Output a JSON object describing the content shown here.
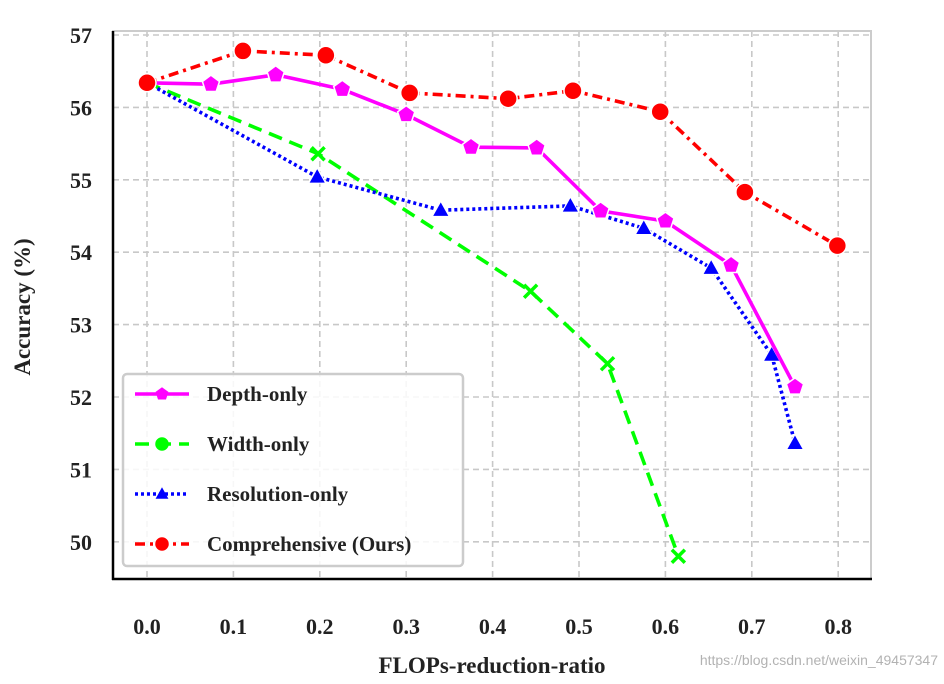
{
  "chart_data": {
    "type": "line",
    "title": "",
    "xlabel": "FLOPs-reduction-ratio",
    "ylabel": "Accuracy (%)",
    "xlim": [
      -0.04,
      0.84
    ],
    "ylim": [
      49.5,
      57.05
    ],
    "xticks": [
      "0.0",
      "0.1",
      "0.2",
      "0.3",
      "0.4",
      "0.5",
      "0.6",
      "0.7",
      "0.8"
    ],
    "xtick_values": [
      0.0,
      0.1,
      0.2,
      0.3,
      0.4,
      0.5,
      0.6,
      0.7,
      0.8
    ],
    "yticks": [
      "50",
      "51",
      "52",
      "53",
      "54",
      "55",
      "56",
      "57"
    ],
    "ytick_values": [
      50,
      51,
      52,
      53,
      54,
      55,
      56,
      57
    ],
    "grid": true,
    "legend_position": "lower-left",
    "series": [
      {
        "name": "Depth-only",
        "color": "#ff00ff",
        "line_style": "solid",
        "marker": "pentagon",
        "x": [
          0.0,
          0.074,
          0.149,
          0.226,
          0.3,
          0.375,
          0.451,
          0.525,
          0.6,
          0.676,
          0.75
        ],
        "y": [
          56.34,
          56.32,
          56.45,
          56.25,
          55.9,
          55.45,
          55.44,
          54.57,
          54.43,
          53.82,
          52.14
        ]
      },
      {
        "name": "Width-only",
        "color": "#00ff00",
        "line_style": "dashed",
        "marker": "x",
        "x": [
          0.0,
          0.198,
          0.444,
          0.533,
          0.615
        ],
        "y": [
          56.34,
          55.36,
          53.46,
          52.46,
          49.8
        ]
      },
      {
        "name": "Resolution-only",
        "color": "#0000ff",
        "line_style": "dotted",
        "marker": "triangle",
        "x": [
          0.0,
          0.197,
          0.34,
          0.49,
          0.575,
          0.653,
          0.723,
          0.75
        ],
        "y": [
          56.34,
          55.04,
          54.58,
          54.64,
          54.33,
          53.78,
          52.58,
          51.36
        ]
      },
      {
        "name": "Comprehensive (Ours)",
        "color": "#ff0000",
        "line_style": "dashdot",
        "marker": "circle",
        "x": [
          0.0,
          0.111,
          0.207,
          0.304,
          0.418,
          0.493,
          0.594,
          0.692,
          0.799
        ],
        "y": [
          56.34,
          56.78,
          56.72,
          56.2,
          56.12,
          56.23,
          55.94,
          54.83,
          54.09
        ]
      }
    ]
  },
  "watermark": "https://blog.csdn.net/weixin_49457347"
}
